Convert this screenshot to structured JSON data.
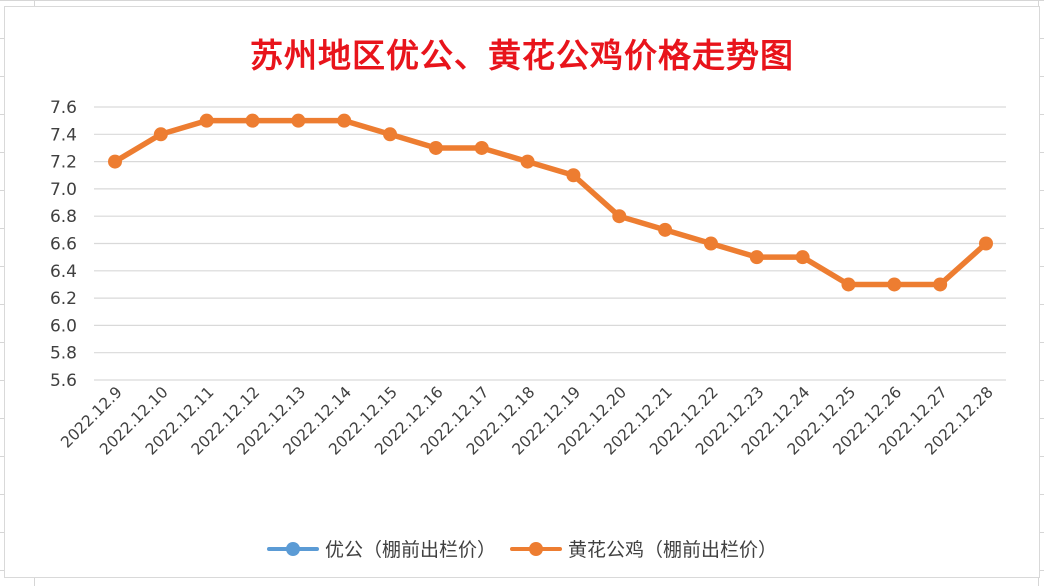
{
  "chart_data": {
    "type": "line",
    "title": "苏州地区优公、黄花公鸡价格走势图",
    "xlabel": "",
    "ylabel": "",
    "ylim": [
      5.6,
      7.6
    ],
    "yticks": [
      "7.6",
      "7.4",
      "7.2",
      "7.0",
      "6.8",
      "6.6",
      "6.4",
      "6.2",
      "6.0",
      "5.8",
      "5.6"
    ],
    "grid": true,
    "legend_position": "bottom",
    "categories": [
      "2022.12.9",
      "2022.12.10",
      "2022.12.11",
      "2022.12.12",
      "2022.12.13",
      "2022.12.14",
      "2022.12.15",
      "2022.12.16",
      "2022.12.17",
      "2022.12.18",
      "2022.12.19",
      "2022.12.20",
      "2022.12.21",
      "2022.12.22",
      "2022.12.23",
      "2022.12.24",
      "2022.12.25",
      "2022.12.26",
      "2022.12.27",
      "2022.12.28"
    ],
    "series": [
      {
        "name": "优公（棚前出栏价）",
        "color": "#5b9bd5",
        "values": [
          null,
          null,
          null,
          null,
          null,
          null,
          null,
          null,
          null,
          null,
          null,
          null,
          null,
          null,
          null,
          null,
          null,
          null,
          null,
          null
        ]
      },
      {
        "name": "黄花公鸡（棚前出栏价）",
        "color": "#ed7d31",
        "values": [
          7.2,
          7.4,
          7.5,
          7.5,
          7.5,
          7.5,
          7.4,
          7.3,
          7.3,
          7.2,
          7.1,
          6.8,
          6.7,
          6.6,
          6.5,
          6.5,
          6.3,
          6.3,
          6.3,
          6.6
        ]
      }
    ]
  },
  "colors": {
    "title": "#e8141b",
    "gridline": "#d9d9d9",
    "tick_text": "#404040"
  }
}
